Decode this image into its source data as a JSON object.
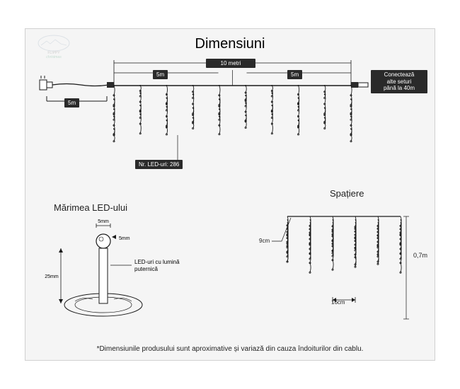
{
  "title": "Dimensiuni",
  "logo_text1": "FLIPPY",
  "logo_text2": "christmas",
  "main": {
    "total_width": "10 metri",
    "half_left": "5m",
    "half_right": "5m",
    "cable": "5m",
    "led_count_label": "Nr. LED-uri: 286",
    "connect_text": "Conectează\nalte seturi\npână la 40m"
  },
  "led": {
    "title": "Mărimea LED-ului",
    "w": "5mm",
    "h": "5mm",
    "base": "25mm",
    "note": "LED-uri cu lumină\nputernică"
  },
  "spacing": {
    "title": "Spațiere",
    "horiz": "9cm",
    "gap": "16cm",
    "drop": "0,7m"
  },
  "footnote": "*Dimensiunile produsului sunt aproximative și variază din cauza îndoiturilor din cablu.",
  "colors": {
    "box": "#2a2a2a",
    "stroke": "#1a1a1a"
  },
  "main_strands": [
    [
      55,
      40,
      30,
      50,
      35
    ],
    [
      30,
      50,
      35,
      55
    ],
    [
      50,
      35,
      55,
      40
    ],
    [
      35,
      55,
      40,
      30
    ],
    [
      55,
      40,
      30,
      50
    ],
    [
      40,
      30,
      50,
      35
    ],
    [
      30,
      50,
      35,
      55
    ],
    [
      50,
      35,
      55,
      40
    ],
    [
      35,
      55,
      40,
      30
    ],
    [
      55,
      40,
      30,
      50,
      35
    ]
  ],
  "spacing_strands": [
    [
      40,
      25,
      35,
      28
    ],
    [
      25,
      35,
      28,
      42
    ],
    [
      35,
      28,
      42,
      25
    ],
    [
      28,
      42,
      25,
      35
    ],
    [
      42,
      25,
      35,
      28
    ],
    [
      25,
      35,
      28,
      42
    ]
  ]
}
